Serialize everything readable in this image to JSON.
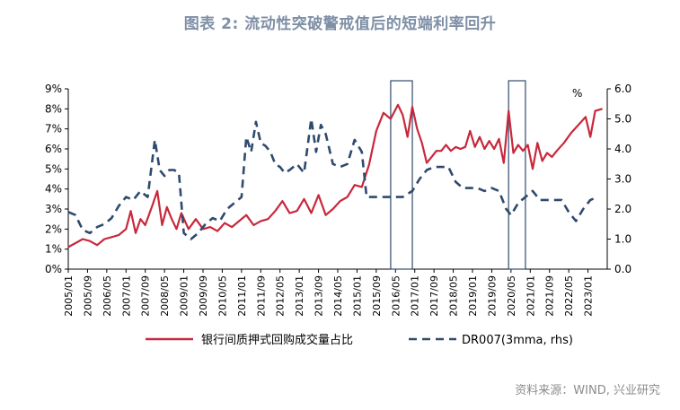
{
  "title": "图表 2:   流动性突破警戒值后的短端利率回升",
  "source": "资料来源：WIND, 兴业研究",
  "unit_right": "%",
  "colors": {
    "series1": "#c8283c",
    "series2": "#2f4a6e",
    "box": "#2f4a6e",
    "title": "#7f8fa6"
  },
  "chart_data": {
    "type": "line",
    "x_tick_labels": [
      "2005/01",
      "2005/09",
      "2006/05",
      "2007/01",
      "2007/09",
      "2008/05",
      "2009/01",
      "2009/09",
      "2010/05",
      "2011/01",
      "2011/09",
      "2012/05",
      "2013/01",
      "2013/09",
      "2014/05",
      "2015/01",
      "2015/09",
      "2016/05",
      "2017/01",
      "2017/09",
      "2018/05",
      "2019/01",
      "2019/09",
      "2020/05",
      "2021/01",
      "2021/09",
      "2022/05",
      "2023/01"
    ],
    "y_left": {
      "ticks": [
        "0%",
        "1%",
        "2%",
        "3%",
        "4%",
        "5%",
        "6%",
        "7%",
        "8%",
        "9%"
      ],
      "ylim": [
        0,
        9
      ]
    },
    "y_right": {
      "ticks": [
        "0.0",
        "1.0",
        "2.0",
        "3.0",
        "4.0",
        "5.0",
        "6.0"
      ],
      "ylim": [
        0,
        6
      ]
    },
    "highlight_boxes": [
      {
        "from": "2016/03",
        "to": "2016/12"
      },
      {
        "from": "2020/04",
        "to": "2020/11"
      }
    ],
    "series": [
      {
        "name": "银行间质押式回购成交量占比",
        "axis": "left",
        "style": "solid",
        "points": [
          [
            "2005/01",
            1.1
          ],
          [
            "2005/04",
            1.3
          ],
          [
            "2005/07",
            1.5
          ],
          [
            "2005/10",
            1.4
          ],
          [
            "2006/01",
            1.2
          ],
          [
            "2006/04",
            1.5
          ],
          [
            "2006/07",
            1.6
          ],
          [
            "2006/10",
            1.7
          ],
          [
            "2007/01",
            2.0
          ],
          [
            "2007/03",
            2.9
          ],
          [
            "2007/05",
            1.8
          ],
          [
            "2007/07",
            2.5
          ],
          [
            "2007/09",
            2.2
          ],
          [
            "2007/12",
            3.2
          ],
          [
            "2008/02",
            3.9
          ],
          [
            "2008/04",
            2.2
          ],
          [
            "2008/06",
            3.1
          ],
          [
            "2008/08",
            2.5
          ],
          [
            "2008/10",
            2.0
          ],
          [
            "2008/12",
            2.8
          ],
          [
            "2009/03",
            2.0
          ],
          [
            "2009/06",
            2.5
          ],
          [
            "2009/09",
            2.0
          ],
          [
            "2009/12",
            2.1
          ],
          [
            "2010/03",
            1.9
          ],
          [
            "2010/06",
            2.3
          ],
          [
            "2010/09",
            2.1
          ],
          [
            "2010/12",
            2.4
          ],
          [
            "2011/03",
            2.7
          ],
          [
            "2011/06",
            2.2
          ],
          [
            "2011/09",
            2.4
          ],
          [
            "2011/12",
            2.5
          ],
          [
            "2012/03",
            2.9
          ],
          [
            "2012/06",
            3.4
          ],
          [
            "2012/09",
            2.8
          ],
          [
            "2012/12",
            2.9
          ],
          [
            "2013/03",
            3.5
          ],
          [
            "2013/06",
            2.8
          ],
          [
            "2013/09",
            3.7
          ],
          [
            "2013/12",
            2.7
          ],
          [
            "2014/03",
            3.0
          ],
          [
            "2014/06",
            3.4
          ],
          [
            "2014/09",
            3.6
          ],
          [
            "2014/12",
            4.2
          ],
          [
            "2015/03",
            4.1
          ],
          [
            "2015/06",
            5.2
          ],
          [
            "2015/09",
            6.9
          ],
          [
            "2015/12",
            7.8
          ],
          [
            "2016/03",
            7.5
          ],
          [
            "2016/06",
            8.2
          ],
          [
            "2016/08",
            7.7
          ],
          [
            "2016/10",
            6.6
          ],
          [
            "2016/12",
            8.1
          ],
          [
            "2017/02",
            7.0
          ],
          [
            "2017/04",
            6.3
          ],
          [
            "2017/06",
            5.3
          ],
          [
            "2017/08",
            5.6
          ],
          [
            "2017/10",
            5.9
          ],
          [
            "2017/12",
            5.9
          ],
          [
            "2018/02",
            6.2
          ],
          [
            "2018/04",
            5.9
          ],
          [
            "2018/06",
            6.1
          ],
          [
            "2018/08",
            6.0
          ],
          [
            "2018/10",
            6.1
          ],
          [
            "2018/12",
            6.9
          ],
          [
            "2019/02",
            6.1
          ],
          [
            "2019/04",
            6.6
          ],
          [
            "2019/06",
            6.0
          ],
          [
            "2019/08",
            6.4
          ],
          [
            "2019/10",
            6.0
          ],
          [
            "2019/12",
            6.5
          ],
          [
            "2020/02",
            5.3
          ],
          [
            "2020/04",
            7.9
          ],
          [
            "2020/06",
            5.8
          ],
          [
            "2020/08",
            6.2
          ],
          [
            "2020/10",
            5.9
          ],
          [
            "2020/12",
            6.2
          ],
          [
            "2021/02",
            5.0
          ],
          [
            "2021/04",
            6.3
          ],
          [
            "2021/06",
            5.4
          ],
          [
            "2021/08",
            5.8
          ],
          [
            "2021/10",
            5.6
          ],
          [
            "2021/12",
            5.9
          ],
          [
            "2022/03",
            6.3
          ],
          [
            "2022/06",
            6.8
          ],
          [
            "2022/09",
            7.2
          ],
          [
            "2022/12",
            7.6
          ],
          [
            "2023/02",
            6.6
          ],
          [
            "2023/04",
            7.9
          ],
          [
            "2023/07",
            8.0
          ]
        ]
      },
      {
        "name": "DR007(3mma, rhs)",
        "axis": "right",
        "style": "dashed",
        "points": [
          [
            "2005/01",
            1.9
          ],
          [
            "2005/04",
            1.8
          ],
          [
            "2005/07",
            1.3
          ],
          [
            "2005/10",
            1.2
          ],
          [
            "2006/01",
            1.4
          ],
          [
            "2006/04",
            1.5
          ],
          [
            "2006/07",
            1.7
          ],
          [
            "2006/10",
            2.1
          ],
          [
            "2007/01",
            2.4
          ],
          [
            "2007/04",
            2.3
          ],
          [
            "2007/07",
            2.6
          ],
          [
            "2007/10",
            2.4
          ],
          [
            "2008/01",
            4.3
          ],
          [
            "2008/03",
            3.3
          ],
          [
            "2008/05",
            3.1
          ],
          [
            "2008/07",
            3.3
          ],
          [
            "2008/09",
            3.3
          ],
          [
            "2008/11",
            3.2
          ],
          [
            "2009/01",
            1.2
          ],
          [
            "2009/04",
            1.0
          ],
          [
            "2009/07",
            1.2
          ],
          [
            "2009/10",
            1.5
          ],
          [
            "2010/01",
            1.7
          ],
          [
            "2010/04",
            1.6
          ],
          [
            "2010/07",
            2.0
          ],
          [
            "2010/10",
            2.2
          ],
          [
            "2011/01",
            2.4
          ],
          [
            "2011/03",
            4.4
          ],
          [
            "2011/05",
            3.9
          ],
          [
            "2011/07",
            4.9
          ],
          [
            "2011/09",
            4.2
          ],
          [
            "2011/11",
            4.1
          ],
          [
            "2012/01",
            3.9
          ],
          [
            "2012/03",
            3.5
          ],
          [
            "2012/05",
            3.4
          ],
          [
            "2012/07",
            3.2
          ],
          [
            "2012/09",
            3.3
          ],
          [
            "2012/12",
            3.5
          ],
          [
            "2013/03",
            3.2
          ],
          [
            "2013/06",
            5.0
          ],
          [
            "2013/08",
            3.9
          ],
          [
            "2013/10",
            4.8
          ],
          [
            "2013/12",
            4.5
          ],
          [
            "2014/03",
            3.5
          ],
          [
            "2014/06",
            3.4
          ],
          [
            "2014/09",
            3.5
          ],
          [
            "2014/12",
            4.3
          ],
          [
            "2015/03",
            3.9
          ],
          [
            "2015/05",
            2.4
          ],
          [
            "2015/08",
            2.4
          ],
          [
            "2015/12",
            2.4
          ],
          [
            "2016/04",
            2.4
          ],
          [
            "2016/08",
            2.4
          ],
          [
            "2016/12",
            2.6
          ],
          [
            "2017/03",
            3.0
          ],
          [
            "2017/06",
            3.3
          ],
          [
            "2017/09",
            3.4
          ],
          [
            "2017/12",
            3.4
          ],
          [
            "2018/03",
            3.4
          ],
          [
            "2018/06",
            2.9
          ],
          [
            "2018/09",
            2.7
          ],
          [
            "2018/12",
            2.7
          ],
          [
            "2019/03",
            2.7
          ],
          [
            "2019/06",
            2.6
          ],
          [
            "2019/09",
            2.7
          ],
          [
            "2019/12",
            2.6
          ],
          [
            "2020/03",
            2.0
          ],
          [
            "2020/05",
            1.8
          ],
          [
            "2020/08",
            2.2
          ],
          [
            "2020/11",
            2.4
          ],
          [
            "2021/02",
            2.6
          ],
          [
            "2021/05",
            2.3
          ],
          [
            "2021/08",
            2.3
          ],
          [
            "2021/11",
            2.3
          ],
          [
            "2022/02",
            2.3
          ],
          [
            "2022/05",
            1.9
          ],
          [
            "2022/08",
            1.6
          ],
          [
            "2022/11",
            2.0
          ],
          [
            "2023/02",
            2.3
          ],
          [
            "2023/05",
            2.4
          ]
        ]
      }
    ]
  }
}
